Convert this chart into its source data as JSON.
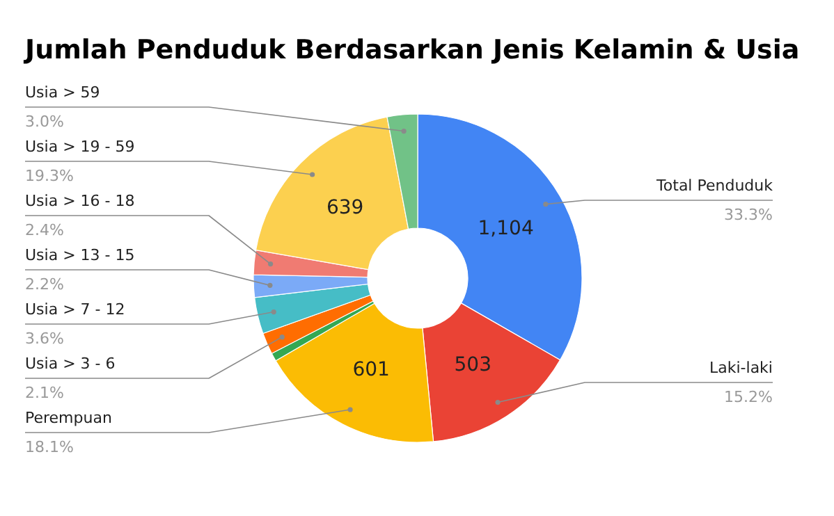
{
  "chart_data": {
    "type": "donut",
    "title": "Jumlah Penduduk Berdasarkan Jenis Kelamin & Usia",
    "categories": [
      "Total Penduduk",
      "Laki-laki",
      "Perempuan",
      null,
      "Usia > 3 - 6",
      "Usia > 7 - 12",
      "Usia > 13 - 15",
      "Usia > 16 - 18",
      "Usia > 19 - 59",
      "Usia > 59"
    ],
    "values": [
      1104,
      503,
      601,
      27,
      70,
      119,
      73,
      80,
      639,
      99
    ],
    "colors": [
      "#4285f4",
      "#ea4335",
      "#fbbc04",
      "#34a853",
      "#ff6d01",
      "#46bdc6",
      "#7baaf7",
      "#f07b72",
      "#fcd04f",
      "#71c287"
    ],
    "value_labels": [
      "1,104",
      "503",
      "601",
      null,
      null,
      null,
      null,
      null,
      "639",
      null
    ],
    "annotations": [
      {
        "text": "33.3%",
        "x": "Total Penduduk"
      },
      {
        "text": "15.2%",
        "x": "Laki-laki"
      },
      {
        "text": "18.1%",
        "x": "Perempuan"
      },
      {
        "text": "2.1%",
        "x": "Usia > 3 - 6"
      },
      {
        "text": "3.6%",
        "x": "Usia > 7 - 12"
      },
      {
        "text": "2.2%",
        "x": "Usia > 13 - 15"
      },
      {
        "text": "2.4%",
        "x": "Usia > 16 - 18"
      },
      {
        "text": "19.3%",
        "x": "Usia > 19 - 59"
      },
      {
        "text": "3.0%",
        "x": "Usia > 59"
      }
    ]
  }
}
